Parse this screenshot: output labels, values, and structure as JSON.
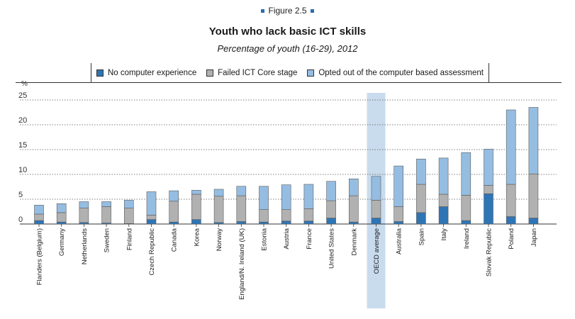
{
  "figure_label": "Figure 2.5",
  "chart_data": {
    "type": "bar",
    "stacked": true,
    "title": "Youth who lack basic ICT skills",
    "subtitle": "Percentage of youth (16-29), 2012",
    "ylabel": "%",
    "ylim": [
      0,
      25
    ],
    "yticks": [
      0,
      5,
      10,
      15,
      20,
      25
    ],
    "grid": true,
    "legend_position": "top",
    "highlight_category": "OECD average",
    "categories": [
      "Flanders (Belgium)",
      "Germany",
      "Netherlands",
      "Sweden",
      "Finland",
      "Czech Republic",
      "Canada",
      "Korea",
      "Norway",
      "England/N. Ireland (UK)",
      "Estonia",
      "Austria",
      "France",
      "United States",
      "Denmark",
      "OECD average",
      "Australia",
      "Spain",
      "Italy",
      "Ireland",
      "Slovak Republic",
      "Poland",
      "Japan"
    ],
    "series": [
      {
        "name": "No computer experience",
        "color": "#2e75b6",
        "values": [
          0.7,
          0.4,
          0.3,
          0.2,
          0.1,
          0.9,
          0.4,
          0.9,
          0.3,
          0.5,
          0.4,
          0.6,
          0.6,
          1.2,
          0.4,
          1.2,
          0.5,
          2.3,
          3.5,
          0.7,
          6.1,
          1.5,
          1.2
        ]
      },
      {
        "name": "Failed ICT Core stage",
        "color": "#b1b1b1",
        "values": [
          1.3,
          1.9,
          2.9,
          3.3,
          3.1,
          0.9,
          4.2,
          5.1,
          5.3,
          5.2,
          2.5,
          2.3,
          2.5,
          3.5,
          5.3,
          3.6,
          3.0,
          5.7,
          2.5,
          5.1,
          1.7,
          6.5,
          8.9
        ]
      },
      {
        "name": "Opted out of the computer based assessment",
        "color": "#95bde2",
        "values": [
          1.8,
          1.8,
          1.3,
          1.0,
          1.6,
          4.7,
          2.1,
          0.8,
          1.4,
          1.9,
          4.7,
          5.0,
          4.9,
          3.9,
          3.4,
          4.8,
          8.2,
          5.1,
          7.3,
          8.6,
          7.3,
          15.0,
          13.4
        ]
      }
    ]
  }
}
